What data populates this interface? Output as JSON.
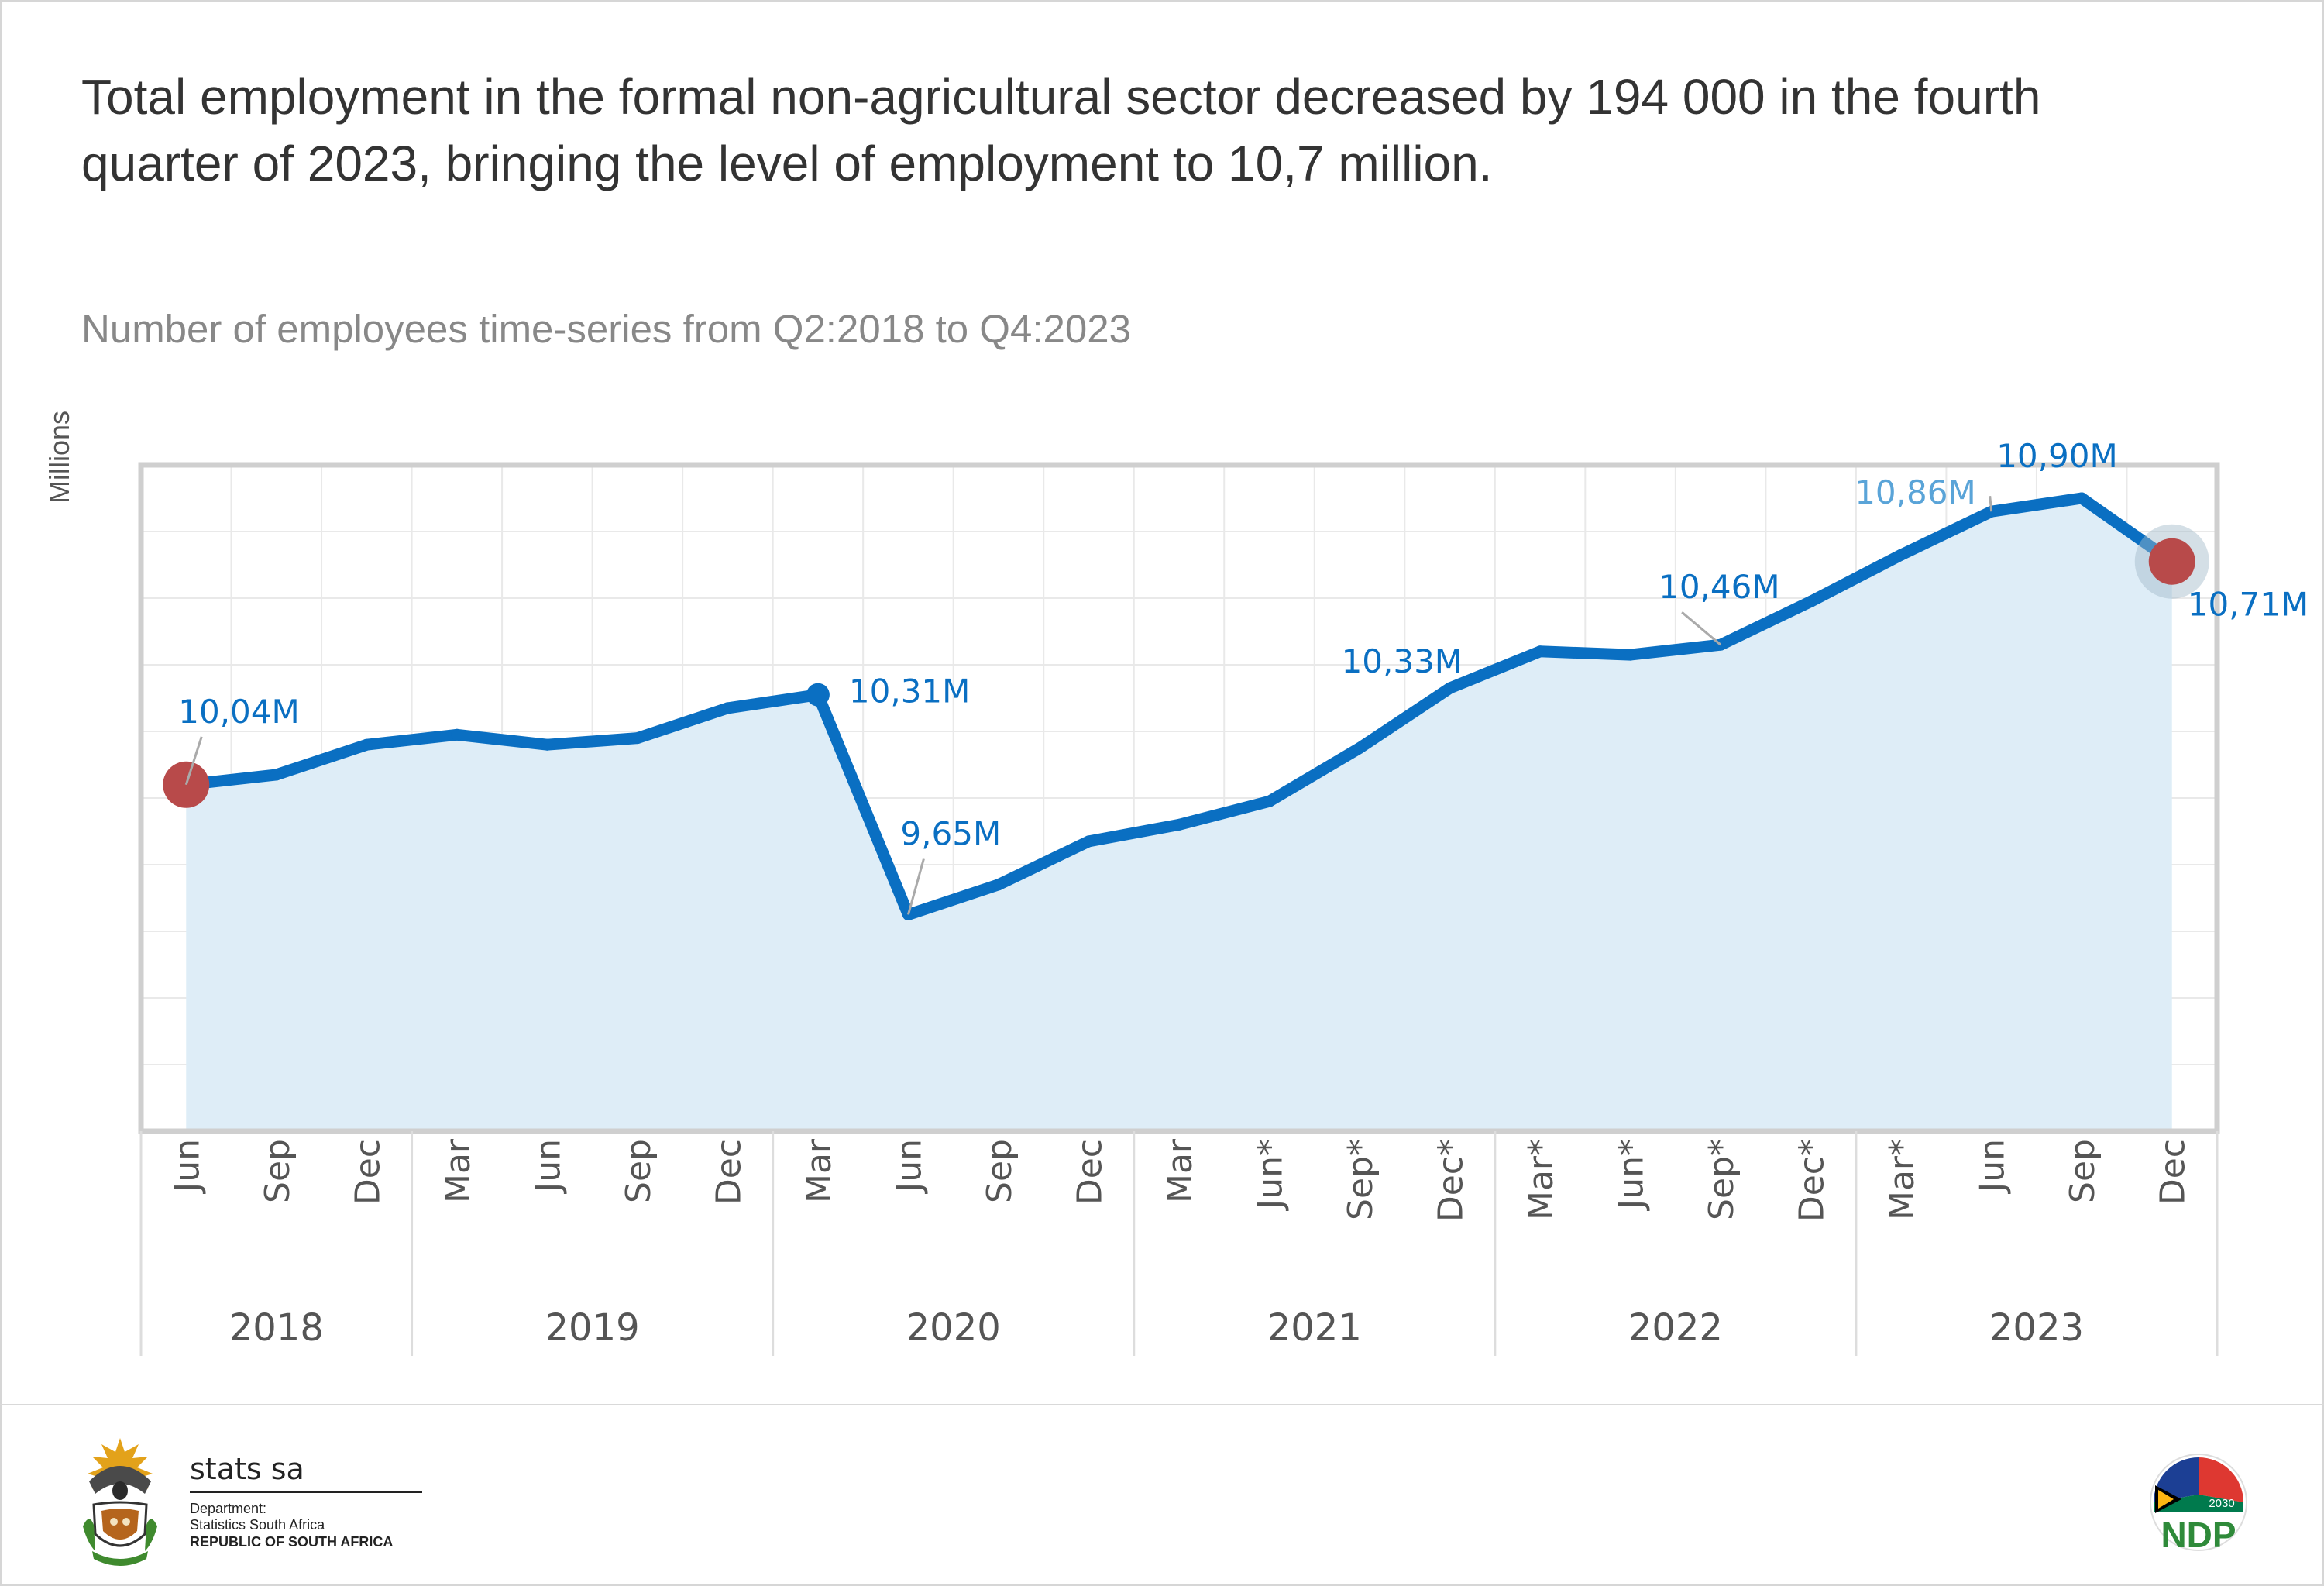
{
  "headline": "Total employment in the formal non-agricultural sector decreased by 194 000 in the fourth quarter of 2023, bringing the level of employment to 10,7 million.",
  "subtitle": "Number of employees time-series from Q2:2018 to Q4:2023",
  "chart_data": {
    "type": "area",
    "ylabel": "Millions",
    "xlabel": "",
    "ylim": [
      9.0,
      11.0
    ],
    "y_tick_step": 0.2,
    "y_ticks_visible": false,
    "grid": true,
    "categories": [
      "Jun",
      "Sep",
      "Dec",
      "Mar",
      "Jun",
      "Sep",
      "Dec",
      "Mar",
      "Jun",
      "Sep",
      "Dec",
      "Mar",
      "Jun*",
      "Sep*",
      "Dec*",
      "Mar*",
      "Jun*",
      "Sep*",
      "Dec*",
      "Mar*",
      "Jun",
      "Sep",
      "Dec"
    ],
    "year_groups": [
      {
        "label": "2018",
        "count": 3
      },
      {
        "label": "2019",
        "count": 4
      },
      {
        "label": "2020",
        "count": 4
      },
      {
        "label": "2021",
        "count": 4
      },
      {
        "label": "2022",
        "count": 4
      },
      {
        "label": "2023",
        "count": 4
      }
    ],
    "series": [
      {
        "values": [
          10.04,
          10.07,
          10.16,
          10.19,
          10.16,
          10.18,
          10.27,
          10.31,
          9.65,
          9.74,
          9.87,
          9.92,
          9.99,
          10.15,
          10.33,
          10.44,
          10.43,
          10.46,
          10.59,
          10.73,
          10.86,
          10.9,
          10.71
        ],
        "color": "#0a6fc2",
        "fill": "#deedf7"
      }
    ],
    "data_labels": [
      {
        "index": 0,
        "text": "10,04M"
      },
      {
        "index": 7,
        "text": "10,31M"
      },
      {
        "index": 8,
        "text": "9,65M"
      },
      {
        "index": 14,
        "text": "10,33M"
      },
      {
        "index": 17,
        "text": "10,46M"
      },
      {
        "index": 20,
        "text": "10,86M"
      },
      {
        "index": 21,
        "text": "10,90M"
      },
      {
        "index": 22,
        "text": "10,71M"
      }
    ],
    "highlight_points": [
      0,
      22
    ],
    "highlight_color": "#b84a4a"
  },
  "footer": {
    "brand": "stats sa",
    "department_label": "Department:",
    "department_name": "Statistics South Africa",
    "republic": "REPUBLIC OF SOUTH AFRICA",
    "ndp_logo_text": "NDP",
    "ndp_year": "2030"
  }
}
